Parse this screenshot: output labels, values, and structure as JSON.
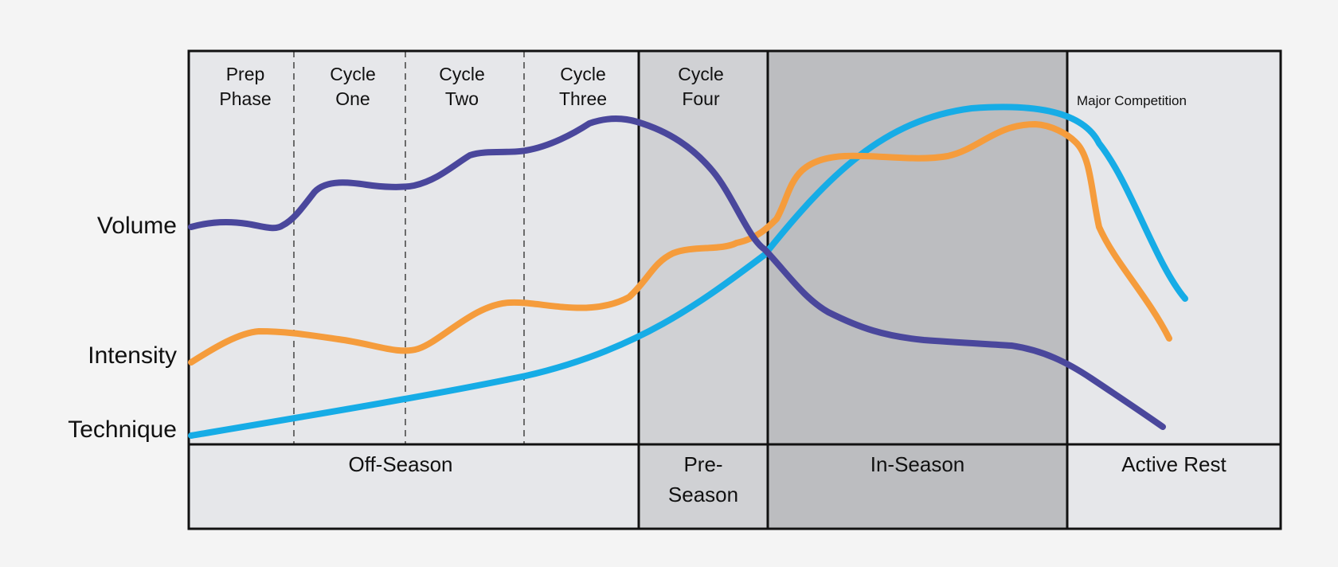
{
  "series": [
    {
      "key": "volume",
      "name": "Volume",
      "color": "#4a479c"
    },
    {
      "key": "intensity",
      "name": "Intensity",
      "color": "#f59c3c"
    },
    {
      "key": "technique",
      "name": "Technique",
      "color": "#16ace6"
    }
  ],
  "phases": {
    "prep": [
      "Prep",
      "Phase"
    ],
    "cycle_one": [
      "Cycle",
      "One"
    ],
    "cycle_two": [
      "Cycle",
      "Two"
    ],
    "cycle_three": [
      "Cycle",
      "Three"
    ],
    "cycle_four": [
      "Cycle",
      "Four"
    ]
  },
  "seasons": {
    "off_season": "Off-Season",
    "pre_season": [
      "Pre-",
      "Season"
    ],
    "in_season": "In-Season",
    "active_rest": "Active Rest"
  },
  "annotation": "Major Competition",
  "colors": {
    "panel_light": "#e6e7ea",
    "panel_mid": "#d0d1d4",
    "panel_dark": "#bcbdc0",
    "border": "#111111"
  }
}
